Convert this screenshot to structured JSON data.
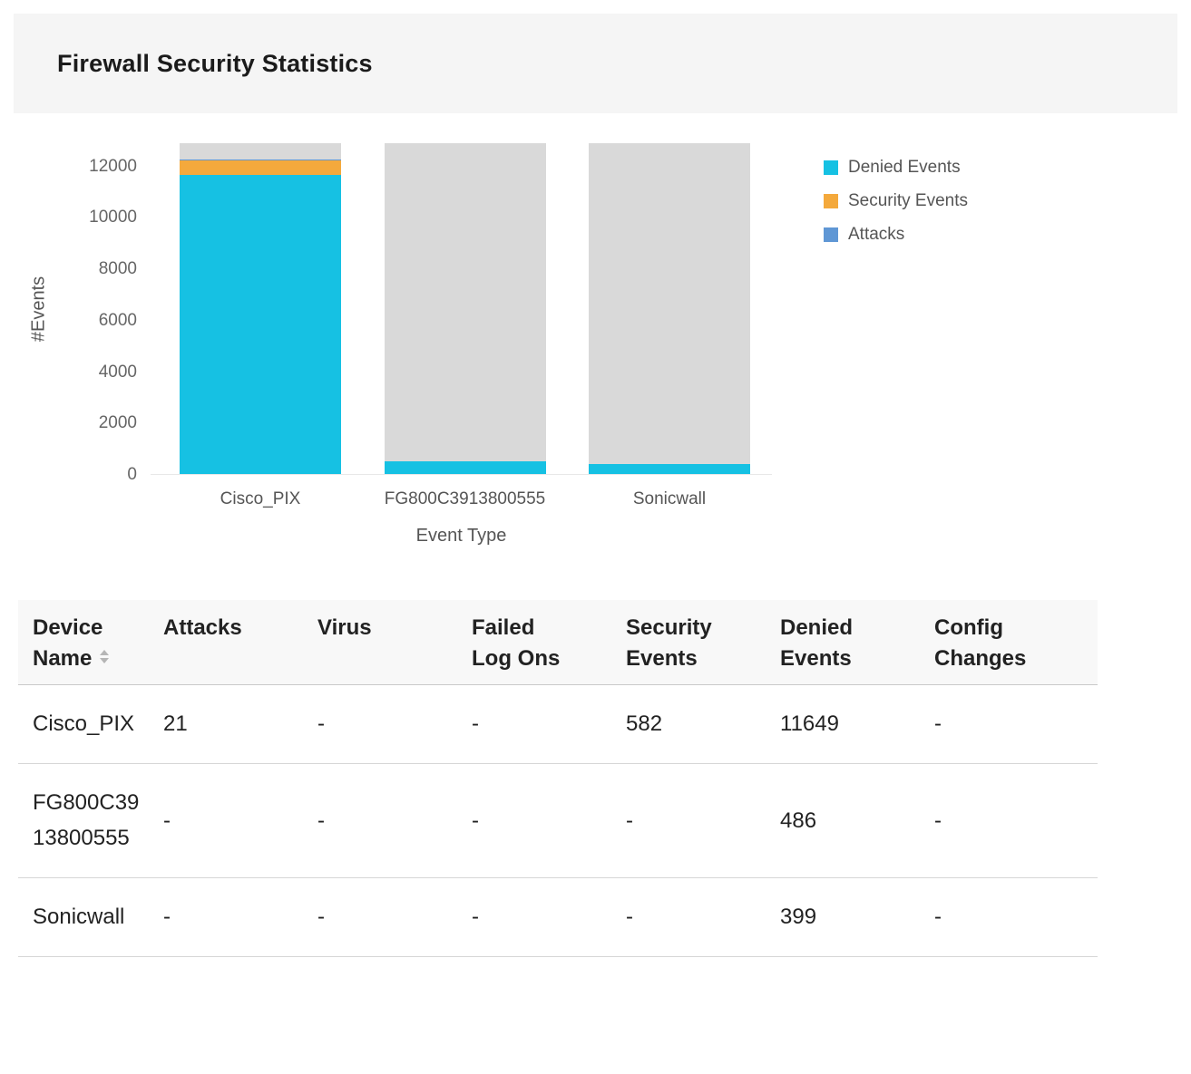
{
  "header": {
    "title": "Firewall Security Statistics"
  },
  "chart_data": {
    "type": "bar",
    "stacked": true,
    "title": "Firewall Security Statistics",
    "xlabel": "Event Type",
    "ylabel": "#Events",
    "categories": [
      "Cisco_PIX",
      "FG800C3913800555",
      "Sonicwall"
    ],
    "series": [
      {
        "name": "Denied Events",
        "color": "#16c1e3",
        "values": [
          11649,
          486,
          399
        ]
      },
      {
        "name": "Security Events",
        "color": "#f4a93c",
        "values": [
          582,
          0,
          0
        ]
      },
      {
        "name": "Attacks",
        "color": "#5f97d5",
        "values": [
          21,
          0,
          0
        ]
      }
    ],
    "track_color": "#d9d9d9",
    "track_value": 12900,
    "ylim": [
      0,
      12900
    ],
    "yticks": [
      0,
      2000,
      4000,
      6000,
      8000,
      10000,
      12000
    ],
    "grid": false,
    "legend_position": "right"
  },
  "table": {
    "columns": [
      "Device Name",
      "Attacks",
      "Virus",
      "Failed Log Ons",
      "Security Events",
      "Denied Events",
      "Config Changes"
    ],
    "rows": [
      [
        "Cisco_PIX",
        "21",
        "-",
        "-",
        "582",
        "11649",
        "-"
      ],
      [
        "FG800C3913800555",
        "-",
        "-",
        "-",
        "-",
        "486",
        "-"
      ],
      [
        "Sonicwall",
        "-",
        "-",
        "-",
        "-",
        "399",
        "-"
      ]
    ]
  }
}
